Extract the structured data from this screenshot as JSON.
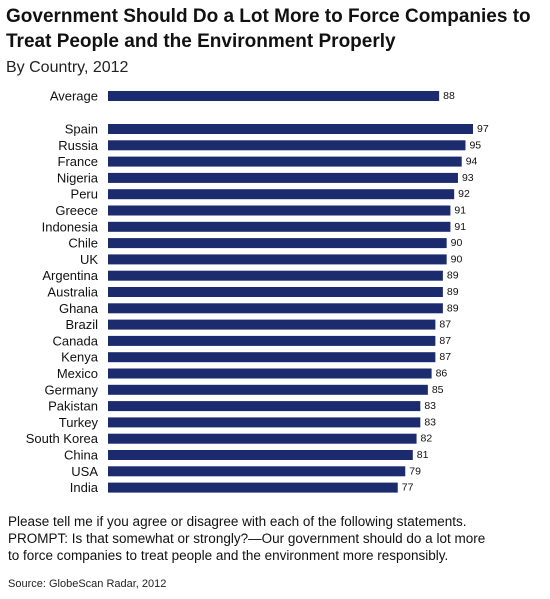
{
  "header": {
    "title": "Government Should Do a Lot More to Force Companies to Treat People and the Environment Properly",
    "subtitle": "By Country, 2012"
  },
  "chart_data": {
    "type": "bar",
    "orientation": "horizontal",
    "categories": [
      "Average",
      "Spain",
      "Russia",
      "France",
      "Nigeria",
      "Peru",
      "Greece",
      "Indonesia",
      "Chile",
      "UK",
      "Argentina",
      "Australia",
      "Ghana",
      "Brazil",
      "Canada",
      "Kenya",
      "Mexico",
      "Germany",
      "Pakistan",
      "Turkey",
      "South Korea",
      "China",
      "USA",
      "India"
    ],
    "values": [
      88,
      97,
      95,
      94,
      93,
      92,
      91,
      91,
      90,
      90,
      89,
      89,
      89,
      87,
      87,
      87,
      86,
      85,
      83,
      83,
      82,
      81,
      79,
      77
    ],
    "data_labels": true,
    "grid": false,
    "legend": "none",
    "bar_color": "#1c2a6e"
  },
  "footnote": {
    "line1": "Please tell me if you agree or disagree with each of the following statements.",
    "line2": "PROMPT: Is that somewhat or strongly?—Our government should do a lot more",
    "line3": "to force companies to treat people and the environment more responsibly."
  },
  "source": "Source: GlobeScan Radar, 2012"
}
